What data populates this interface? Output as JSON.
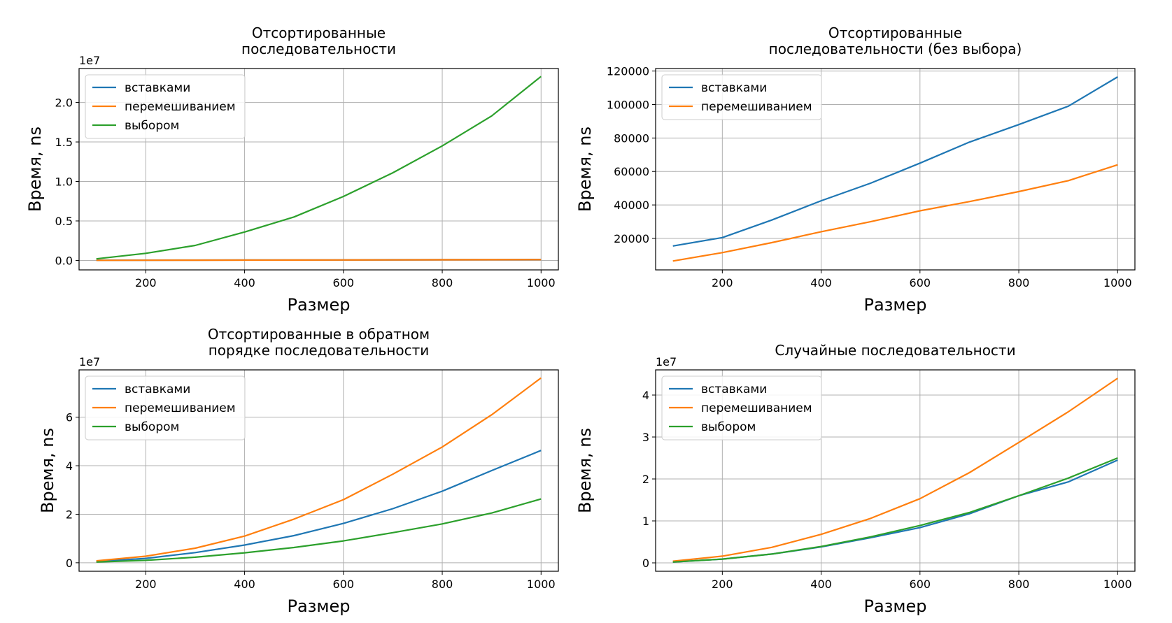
{
  "chart_data": [
    {
      "type": "line",
      "title": [
        "Отсортированные",
        "последовательности"
      ],
      "xlabel": "Размер",
      "ylabel": "Время, ns",
      "y_multiplier": "1e7",
      "xlim": [
        65,
        1035
      ],
      "ylim": [
        -0.12,
        2.43
      ],
      "xticks": [
        200,
        400,
        600,
        800,
        1000
      ],
      "xtick_labels": [
        "200",
        "400",
        "600",
        "800",
        "1000"
      ],
      "yticks": [
        0,
        0.5,
        1.0,
        1.5,
        2.0
      ],
      "ytick_labels": [
        "0.0",
        "0.5",
        "1.0",
        "1.5",
        "2.0"
      ],
      "grid": true,
      "legend_position": "upper-left",
      "x": [
        100,
        200,
        300,
        400,
        500,
        600,
        700,
        800,
        900,
        1000
      ],
      "series": [
        {
          "name": "вставками",
          "color": "#1f77b4",
          "values": [
            0.002,
            0.003,
            0.004,
            0.005,
            0.006,
            0.007,
            0.008,
            0.009,
            0.01,
            0.012
          ]
        },
        {
          "name": "перемешиванием",
          "color": "#ff7f0e",
          "values": [
            0.001,
            0.002,
            0.003,
            0.004,
            0.005,
            0.006,
            0.007,
            0.008,
            0.009,
            0.01
          ]
        },
        {
          "name": "выбором",
          "color": "#2ca02c",
          "values": [
            0.02,
            0.09,
            0.19,
            0.36,
            0.55,
            0.81,
            1.11,
            1.45,
            1.83,
            2.33
          ]
        }
      ]
    },
    {
      "type": "line",
      "title": [
        "Отсортированные",
        "последовательности (без выбора)"
      ],
      "xlabel": "Размер",
      "ylabel": "Время, ns",
      "y_multiplier": "",
      "xlim": [
        65,
        1035
      ],
      "ylim": [
        1200,
        121500
      ],
      "xticks": [
        200,
        400,
        600,
        800,
        1000
      ],
      "xtick_labels": [
        "200",
        "400",
        "600",
        "800",
        "1000"
      ],
      "yticks": [
        20000,
        40000,
        60000,
        80000,
        100000,
        120000
      ],
      "ytick_labels": [
        "20000",
        "40000",
        "60000",
        "80000",
        "100000",
        "120000"
      ],
      "grid": true,
      "legend_position": "upper-left",
      "x": [
        100,
        200,
        300,
        400,
        500,
        600,
        700,
        800,
        900,
        1000
      ],
      "series": [
        {
          "name": "вставками",
          "color": "#1f77b4",
          "values": [
            15500,
            20500,
            31000,
            42500,
            53000,
            65000,
            77500,
            88000,
            99000,
            116500
          ]
        },
        {
          "name": "перемешиванием",
          "color": "#ff7f0e",
          "values": [
            6500,
            11500,
            17500,
            24000,
            30000,
            36500,
            42000,
            48000,
            54500,
            64000
          ]
        }
      ]
    },
    {
      "type": "line",
      "title": [
        "Отсортированные в обратном",
        "порядке последовательности"
      ],
      "xlabel": "Размер",
      "ylabel": "Время, ns",
      "y_multiplier": "1e7",
      "xlim": [
        65,
        1035
      ],
      "ylim": [
        -0.35,
        7.95
      ],
      "xticks": [
        200,
        400,
        600,
        800,
        1000
      ],
      "xtick_labels": [
        "200",
        "400",
        "600",
        "800",
        "1000"
      ],
      "yticks": [
        0,
        2,
        4,
        6
      ],
      "ytick_labels": [
        "0",
        "2",
        "4",
        "6"
      ],
      "grid": true,
      "legend_position": "upper-left",
      "x": [
        100,
        200,
        300,
        400,
        500,
        600,
        700,
        800,
        900,
        1000
      ],
      "series": [
        {
          "name": "вставками",
          "color": "#1f77b4",
          "values": [
            0.05,
            0.18,
            0.42,
            0.73,
            1.12,
            1.62,
            2.23,
            2.95,
            3.8,
            4.63
          ]
        },
        {
          "name": "перемешиванием",
          "color": "#ff7f0e",
          "values": [
            0.08,
            0.27,
            0.6,
            1.1,
            1.8,
            2.6,
            3.65,
            4.77,
            6.1,
            7.62
          ]
        },
        {
          "name": "выбором",
          "color": "#2ca02c",
          "values": [
            0.03,
            0.1,
            0.23,
            0.41,
            0.63,
            0.9,
            1.24,
            1.6,
            2.05,
            2.63
          ]
        }
      ]
    },
    {
      "type": "line",
      "title": [
        "Случайные последовательности"
      ],
      "xlabel": "Размер",
      "ylabel": "Время, ns",
      "y_multiplier": "1e7",
      "xlim": [
        65,
        1035
      ],
      "ylim": [
        -0.2,
        4.6
      ],
      "xticks": [
        200,
        400,
        600,
        800,
        1000
      ],
      "xtick_labels": [
        "200",
        "400",
        "600",
        "800",
        "1000"
      ],
      "yticks": [
        0,
        1,
        2,
        3,
        4
      ],
      "ytick_labels": [
        "0",
        "1",
        "2",
        "3",
        "4"
      ],
      "grid": true,
      "legend_position": "upper-left",
      "x": [
        100,
        200,
        300,
        400,
        500,
        600,
        700,
        800,
        900,
        1000
      ],
      "series": [
        {
          "name": "вставками",
          "color": "#1f77b4",
          "values": [
            0.02,
            0.09,
            0.21,
            0.38,
            0.6,
            0.84,
            1.17,
            1.6,
            1.93,
            2.45
          ]
        },
        {
          "name": "перемешиванием",
          "color": "#ff7f0e",
          "values": [
            0.04,
            0.16,
            0.37,
            0.68,
            1.06,
            1.53,
            2.15,
            2.87,
            3.6,
            4.4
          ]
        },
        {
          "name": "выбором",
          "color": "#2ca02c",
          "values": [
            0.02,
            0.09,
            0.21,
            0.39,
            0.62,
            0.89,
            1.2,
            1.6,
            2.02,
            2.5
          ]
        }
      ]
    }
  ]
}
